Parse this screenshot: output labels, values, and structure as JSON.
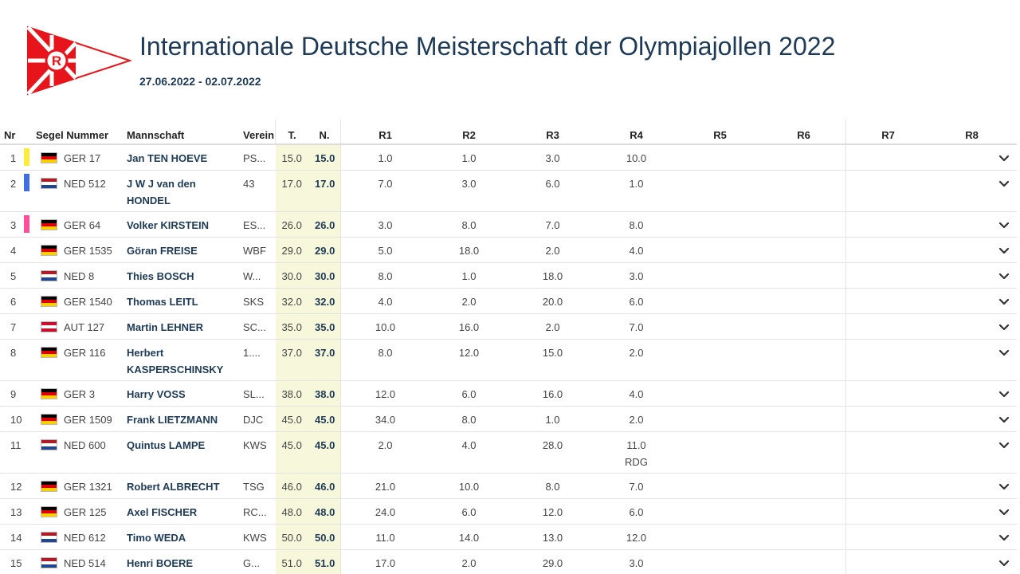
{
  "header": {
    "title": "Internationale Deutsche Meisterschaft der Olympiajollen 2022",
    "dates": "27.06.2022 - 02.07.2022"
  },
  "colors": {
    "title": "#1e3a56",
    "highlight_bg": "#f7f7dc",
    "marker_yellow": "#ffeb3b",
    "marker_blue": "#3f6fe0",
    "marker_pink": "#ff4f9a",
    "logo_red": "#e8141c"
  },
  "columns": {
    "nr": "Nr",
    "sail": "Segel Nummer",
    "crew": "Mannschaft",
    "club": "Verein",
    "total": "T.",
    "net": "N.",
    "races": [
      "R1",
      "R2",
      "R3",
      "R4",
      "R5",
      "R6",
      "R7",
      "R8"
    ]
  },
  "rows": [
    {
      "nr": "1",
      "marker": "yellow",
      "flag": "ger",
      "sail": "GER 17",
      "crew": "Jan TEN HOEVE",
      "club": "PS...",
      "total": "15.0",
      "net": "15.0",
      "races": [
        "1.0",
        "1.0",
        "3.0",
        "10.0"
      ],
      "r4_note": ""
    },
    {
      "nr": "2",
      "marker": "blue",
      "flag": "ned",
      "sail": "NED 512",
      "crew": "J W J van den HONDEL",
      "club": "43",
      "total": "17.0",
      "net": "17.0",
      "races": [
        "7.0",
        "3.0",
        "6.0",
        "1.0"
      ],
      "r4_note": ""
    },
    {
      "nr": "3",
      "marker": "pink",
      "flag": "ger",
      "sail": "GER 64",
      "crew": "Volker KIRSTEIN",
      "club": "ES...",
      "total": "26.0",
      "net": "26.0",
      "races": [
        "3.0",
        "8.0",
        "7.0",
        "8.0"
      ],
      "r4_note": ""
    },
    {
      "nr": "4",
      "marker": "",
      "flag": "ger",
      "sail": "GER 1535",
      "crew": "Göran FREISE",
      "club": "WBF",
      "total": "29.0",
      "net": "29.0",
      "races": [
        "5.0",
        "18.0",
        "2.0",
        "4.0"
      ],
      "r4_note": ""
    },
    {
      "nr": "5",
      "marker": "",
      "flag": "ned",
      "sail": "NED 8",
      "crew": "Thies BOSCH",
      "club": "W...",
      "total": "30.0",
      "net": "30.0",
      "races": [
        "8.0",
        "1.0",
        "18.0",
        "3.0"
      ],
      "r4_note": ""
    },
    {
      "nr": "6",
      "marker": "",
      "flag": "ger",
      "sail": "GER 1540",
      "crew": "Thomas LEITL",
      "club": "SKS",
      "total": "32.0",
      "net": "32.0",
      "races": [
        "4.0",
        "2.0",
        "20.0",
        "6.0"
      ],
      "r4_note": ""
    },
    {
      "nr": "7",
      "marker": "",
      "flag": "aut",
      "sail": "AUT 127",
      "crew": "Martin LEHNER",
      "club": "SC...",
      "total": "35.0",
      "net": "35.0",
      "races": [
        "10.0",
        "16.0",
        "2.0",
        "7.0"
      ],
      "r4_note": ""
    },
    {
      "nr": "8",
      "marker": "",
      "flag": "ger",
      "sail": "GER 116",
      "crew": "Herbert KASPERSCHINSKY",
      "club": "1....",
      "total": "37.0",
      "net": "37.0",
      "races": [
        "8.0",
        "12.0",
        "15.0",
        "2.0"
      ],
      "r4_note": ""
    },
    {
      "nr": "9",
      "marker": "",
      "flag": "ger",
      "sail": "GER 3",
      "crew": "Harry VOSS",
      "club": "SL...",
      "total": "38.0",
      "net": "38.0",
      "races": [
        "12.0",
        "6.0",
        "16.0",
        "4.0"
      ],
      "r4_note": ""
    },
    {
      "nr": "10",
      "marker": "",
      "flag": "ger",
      "sail": "GER 1509",
      "crew": "Frank LIETZMANN",
      "club": "DJC",
      "total": "45.0",
      "net": "45.0",
      "races": [
        "34.0",
        "8.0",
        "1.0",
        "2.0"
      ],
      "r4_note": ""
    },
    {
      "nr": "11",
      "marker": "",
      "flag": "ned",
      "sail": "NED 600",
      "crew": "Quintus LAMPE",
      "club": "KWS",
      "total": "45.0",
      "net": "45.0",
      "races": [
        "2.0",
        "4.0",
        "28.0",
        "11.0"
      ],
      "r4_note": "RDG"
    },
    {
      "nr": "12",
      "marker": "",
      "flag": "ger",
      "sail": "GER 1321",
      "crew": "Robert ALBRECHT",
      "club": "TSG",
      "total": "46.0",
      "net": "46.0",
      "races": [
        "21.0",
        "10.0",
        "8.0",
        "7.0"
      ],
      "r4_note": ""
    },
    {
      "nr": "13",
      "marker": "",
      "flag": "ger",
      "sail": "GER 125",
      "crew": "Axel FISCHER",
      "club": "RC...",
      "total": "48.0",
      "net": "48.0",
      "races": [
        "24.0",
        "6.0",
        "12.0",
        "6.0"
      ],
      "r4_note": ""
    },
    {
      "nr": "14",
      "marker": "",
      "flag": "ned",
      "sail": "NED 612",
      "crew": "Timo WEDA",
      "club": "KWS",
      "total": "50.0",
      "net": "50.0",
      "races": [
        "11.0",
        "14.0",
        "13.0",
        "12.0"
      ],
      "r4_note": ""
    },
    {
      "nr": "15",
      "marker": "",
      "flag": "ned",
      "sail": "NED 514",
      "crew": "Henri BOERE",
      "club": "G...",
      "total": "51.0",
      "net": "51.0",
      "races": [
        "17.0",
        "2.0",
        "29.0",
        "3.0"
      ],
      "r4_note": ""
    }
  ]
}
